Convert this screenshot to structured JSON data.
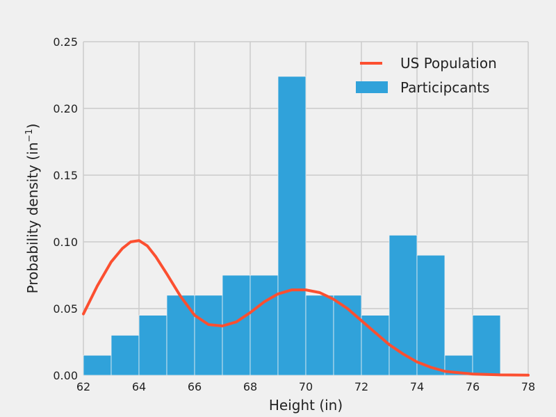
{
  "chart_data": {
    "type": "bar",
    "title": "",
    "xlabel": "Height (in)",
    "ylabel": "Probability density (in",
    "ylabel_superscript": "−1",
    "ylabel_close": ")",
    "xlim": [
      62,
      78
    ],
    "ylim": [
      0,
      0.25
    ],
    "xticks": [
      62,
      64,
      66,
      68,
      70,
      72,
      74,
      76,
      78
    ],
    "yticks": [
      0.0,
      0.05,
      0.1,
      0.15,
      0.2,
      0.25
    ],
    "grid": true,
    "legend_position": "top-right",
    "histogram": {
      "name": "Participcants",
      "color": "#30a2da",
      "bins": [
        {
          "x0": 62,
          "x1": 63,
          "value": 0.015
        },
        {
          "x0": 63,
          "x1": 64,
          "value": 0.03
        },
        {
          "x0": 64,
          "x1": 65,
          "value": 0.045
        },
        {
          "x0": 65,
          "x1": 66,
          "value": 0.06
        },
        {
          "x0": 66,
          "x1": 67,
          "value": 0.06
        },
        {
          "x0": 67,
          "x1": 68,
          "value": 0.075
        },
        {
          "x0": 68,
          "x1": 69,
          "value": 0.075
        },
        {
          "x0": 69,
          "x1": 70,
          "value": 0.224
        },
        {
          "x0": 70,
          "x1": 71,
          "value": 0.06
        },
        {
          "x0": 71,
          "x1": 72,
          "value": 0.06
        },
        {
          "x0": 72,
          "x1": 73,
          "value": 0.045
        },
        {
          "x0": 73,
          "x1": 74,
          "value": 0.105
        },
        {
          "x0": 74,
          "x1": 75,
          "value": 0.09
        },
        {
          "x0": 75,
          "x1": 76,
          "value": 0.015
        },
        {
          "x0": 76,
          "x1": 77,
          "value": 0.045
        }
      ]
    },
    "line": {
      "name": "US Population",
      "color": "#fc4f30",
      "x": [
        62,
        62.5,
        63,
        63.4,
        63.7,
        64,
        64.3,
        64.6,
        65,
        65.5,
        66,
        66.5,
        67,
        67.5,
        68,
        68.5,
        69,
        69.5,
        70,
        70.5,
        71,
        71.5,
        72,
        72.5,
        73,
        73.5,
        74,
        74.5,
        75,
        75.5,
        76,
        77,
        78
      ],
      "y": [
        0.046,
        0.067,
        0.085,
        0.095,
        0.1,
        0.101,
        0.097,
        0.089,
        0.076,
        0.059,
        0.045,
        0.038,
        0.037,
        0.04,
        0.047,
        0.055,
        0.061,
        0.064,
        0.064,
        0.062,
        0.057,
        0.05,
        0.041,
        0.032,
        0.023,
        0.016,
        0.01,
        0.006,
        0.003,
        0.002,
        0.001,
        0.0003,
        0.0001
      ]
    }
  }
}
